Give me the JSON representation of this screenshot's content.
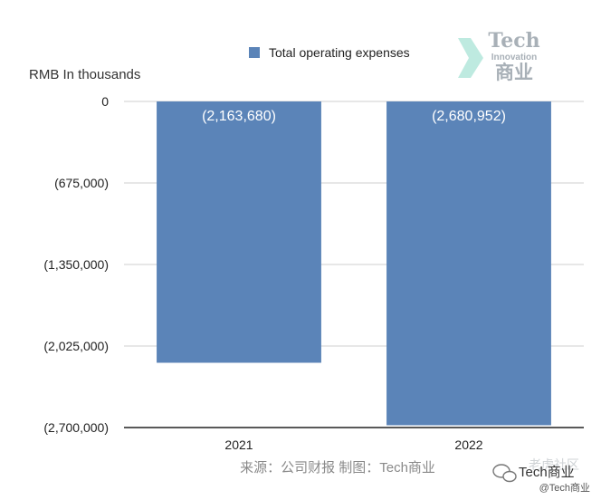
{
  "chart_data": {
    "type": "bar",
    "ylabel": "RMB In thousands",
    "categories": [
      "2021",
      "2022"
    ],
    "series": [
      {
        "name": "Total operating expenses",
        "values": [
          -2163680,
          -2680952
        ],
        "labels": [
          "(2,163,680)",
          "(2,680,952)"
        ],
        "color": "#5b84b8"
      }
    ],
    "ylim": [
      -2700000,
      0
    ],
    "yticks": [
      0,
      -675000,
      -1350000,
      -2025000,
      -2700000
    ],
    "ytick_labels": [
      "0",
      "(675,000)",
      "(1,350,000)",
      "(2,025,000)",
      "(2,700,000)"
    ],
    "grid": true,
    "legend": "top-right"
  },
  "source_note": "来源：公司财报 制图：Tech商业",
  "watermark": {
    "title": "Tech",
    "subtitle": "Innovation",
    "cn": "商业",
    "color": "#9aa3ab",
    "accent": "#7fd6c2"
  },
  "badge": {
    "name": "Tech商业",
    "community": "老虎社区",
    "handle": "@Tech商业"
  }
}
